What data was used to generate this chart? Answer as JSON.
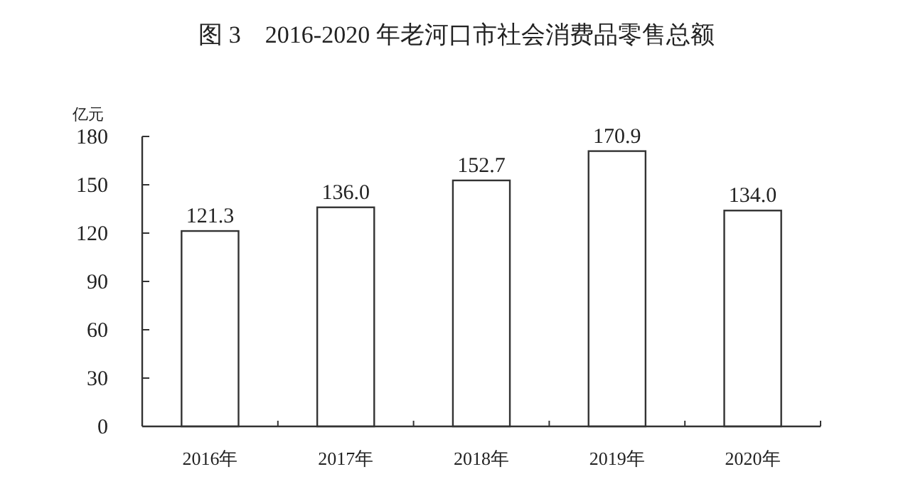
{
  "chart_data": {
    "type": "bar",
    "title": "图 3　2016-2020 年老河口市社会消费品零售总额",
    "ylabel": "亿元",
    "categories": [
      "2016年",
      "2017年",
      "2018年",
      "2019年",
      "2020年"
    ],
    "values": [
      121.3,
      136.0,
      152.7,
      170.9,
      134.0
    ],
    "value_labels": [
      "121.3",
      "136.0",
      "152.7",
      "170.9",
      "134.0"
    ],
    "color": "#ffffff",
    "ylim": [
      0,
      180
    ],
    "yticks": [
      0,
      30,
      60,
      90,
      120,
      150,
      180
    ],
    "grid": false
  }
}
